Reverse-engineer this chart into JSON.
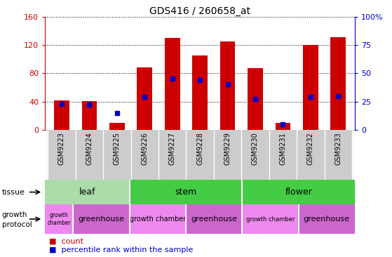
{
  "title": "GDS416 / 260658_at",
  "samples": [
    "GSM9223",
    "GSM9224",
    "GSM9225",
    "GSM9226",
    "GSM9227",
    "GSM9228",
    "GSM9229",
    "GSM9230",
    "GSM9231",
    "GSM9232",
    "GSM9233"
  ],
  "counts": [
    42,
    41,
    10,
    88,
    130,
    105,
    125,
    87,
    10,
    120,
    131
  ],
  "percentiles": [
    23,
    22,
    15,
    29,
    45,
    44,
    40,
    27,
    5,
    29,
    30
  ],
  "ylim_left": [
    0,
    160
  ],
  "ylim_right": [
    0,
    100
  ],
  "bar_color": "#cc0000",
  "dot_color": "#0000cc",
  "yticks_left": [
    0,
    40,
    80,
    120,
    160
  ],
  "yticks_right": [
    0,
    25,
    50,
    75,
    100
  ],
  "ytick_labels_right": [
    "0",
    "25",
    "50",
    "75",
    "100%"
  ],
  "tissue_groups": [
    {
      "label": "leaf",
      "start": 0,
      "end": 3,
      "color": "#aaddaa"
    },
    {
      "label": "stem",
      "start": 3,
      "end": 7,
      "color": "#44cc44"
    },
    {
      "label": "flower",
      "start": 7,
      "end": 11,
      "color": "#44cc44"
    }
  ],
  "protocol_groups": [
    {
      "label": "growth\nchamber",
      "start": 0,
      "end": 1,
      "color": "#ee88ee",
      "fontsize": 5.5
    },
    {
      "label": "greenhouse",
      "start": 1,
      "end": 3,
      "color": "#cc66cc",
      "fontsize": 8
    },
    {
      "label": "growth chamber",
      "start": 3,
      "end": 5,
      "color": "#ee88ee",
      "fontsize": 7
    },
    {
      "label": "greenhouse",
      "start": 5,
      "end": 7,
      "color": "#cc66cc",
      "fontsize": 8
    },
    {
      "label": "growth chamber",
      "start": 7,
      "end": 9,
      "color": "#ee88ee",
      "fontsize": 6
    },
    {
      "label": "greenhouse",
      "start": 9,
      "end": 11,
      "color": "#cc66cc",
      "fontsize": 8
    }
  ],
  "bg_color": "#ffffff",
  "left_axis_color": "#cc0000",
  "right_axis_color": "#0000cc",
  "xlabels_bg": "#cccccc"
}
